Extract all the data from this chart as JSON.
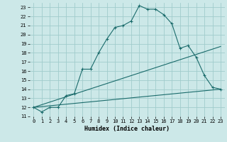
{
  "xlabel": "Humidex (Indice chaleur)",
  "bg_color": "#cce8e8",
  "grid_color": "#a0cccc",
  "line_color": "#1a6b6b",
  "xlim": [
    -0.5,
    23.5
  ],
  "ylim": [
    11,
    23.5
  ],
  "yticks": [
    11,
    12,
    13,
    14,
    15,
    16,
    17,
    18,
    19,
    20,
    21,
    22,
    23
  ],
  "xticks": [
    0,
    1,
    2,
    3,
    4,
    5,
    6,
    7,
    8,
    9,
    10,
    11,
    12,
    13,
    14,
    15,
    16,
    17,
    18,
    19,
    20,
    21,
    22,
    23
  ],
  "series1_x": [
    0,
    1,
    2,
    3,
    4,
    5,
    6,
    7,
    8,
    9,
    10,
    11,
    12,
    13,
    14,
    15,
    16,
    17,
    18,
    19,
    20,
    21,
    22,
    23
  ],
  "series1_y": [
    12,
    11.5,
    12,
    12,
    13.3,
    13.5,
    16.2,
    16.2,
    18,
    19.5,
    20.8,
    21,
    21.5,
    23.2,
    22.8,
    22.8,
    22.2,
    21.2,
    18.5,
    18.8,
    17.5,
    15.5,
    14.2,
    14
  ],
  "series2_x": [
    0,
    23
  ],
  "series2_y": [
    12,
    18.7
  ],
  "series3_x": [
    0,
    23
  ],
  "series3_y": [
    12,
    14
  ]
}
